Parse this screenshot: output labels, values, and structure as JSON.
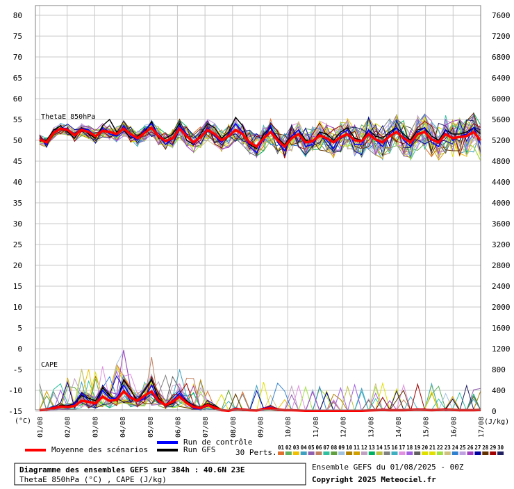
{
  "chart_data": {
    "type": "line",
    "title": "Diagramme des ensembles GEFS sur 384h : 40.6N 23E",
    "subtitle": "ThetaE 850hPa (°C) , CAPE (J/kg)",
    "run_info": "Ensemble GEFS du 01/08/2025 - 00Z",
    "copyright": "Copyright 2025 Meteociel.fr",
    "panel_labels": {
      "thetae": "ThetaE 850hPa",
      "cape": "CAPE"
    },
    "left_unit": "(°C)",
    "right_unit": "(J/kg)",
    "left_axis": {
      "min": -15,
      "max": 80,
      "ticks": [
        80,
        75,
        70,
        65,
        60,
        55,
        50,
        45,
        40,
        35,
        30,
        25,
        20,
        15,
        10,
        5,
        0,
        -5,
        -10,
        -15
      ]
    },
    "right_axis": {
      "min": 0,
      "max": 7600,
      "ticks": [
        7600,
        7200,
        6800,
        6400,
        6000,
        5600,
        5200,
        4800,
        4400,
        4000,
        3600,
        3200,
        2800,
        2400,
        2000,
        1600,
        1200,
        800,
        400,
        0
      ]
    },
    "x_labels": [
      "01/08",
      "02/08",
      "03/08",
      "04/08",
      "05/08",
      "06/08",
      "07/08",
      "08/08",
      "09/08",
      "10/08",
      "11/08",
      "12/08",
      "13/08",
      "14/08",
      "15/08",
      "16/08",
      "17/08"
    ],
    "series_thetae_mean": [
      50.2,
      49.5,
      51.8,
      52.8,
      52.5,
      51.2,
      52.5,
      52.0,
      51.0,
      52.3,
      52.0,
      51.5,
      52.8,
      51.5,
      50.5,
      51.8,
      53.0,
      51.0,
      49.8,
      50.5,
      52.8,
      51.0,
      49.5,
      50.8,
      52.5,
      51.5,
      50.0,
      51.0,
      52.5,
      51.5,
      49.5,
      48.5,
      50.5,
      52.0,
      50.0,
      48.5,
      50.5,
      51.5,
      49.5,
      49.8,
      51.2,
      50.5,
      49.5,
      50.8,
      51.5,
      50.0,
      49.8,
      51.5,
      50.2,
      49.5,
      51.0,
      52.0,
      50.5,
      49.5,
      51.5,
      52.0,
      50.2,
      49.5,
      51.5,
      50.5,
      50.8,
      51.0,
      52.0,
      50.0
    ],
    "series_thetae_control": [
      50.5,
      49.0,
      52.0,
      53.0,
      52.8,
      51.0,
      52.8,
      52.5,
      51.0,
      52.8,
      51.5,
      51.0,
      53.5,
      51.0,
      50.0,
      52.5,
      54.0,
      51.0,
      49.0,
      50.5,
      53.5,
      51.5,
      49.0,
      51.0,
      53.0,
      51.0,
      49.5,
      51.5,
      54.0,
      52.0,
      48.5,
      47.0,
      50.5,
      53.5,
      49.5,
      47.5,
      51.0,
      52.5,
      48.5,
      49.0,
      51.5,
      50.0,
      48.0,
      51.5,
      52.5,
      49.0,
      49.0,
      52.5,
      50.0,
      48.5,
      51.5,
      53.0,
      50.0,
      48.5,
      52.0,
      53.0,
      49.5,
      48.5,
      52.5,
      50.0,
      51.0,
      51.5,
      53.0,
      49.0
    ],
    "series_thetae_gfs": [
      49.8,
      50.0,
      52.5,
      53.5,
      52.0,
      50.5,
      53.0,
      51.5,
      50.5,
      53.5,
      55.0,
      52.0,
      52.5,
      50.5,
      51.0,
      52.0,
      54.5,
      50.5,
      50.5,
      51.5,
      54.0,
      50.0,
      49.0,
      51.5,
      54.0,
      53.0,
      50.5,
      52.0,
      55.5,
      53.5,
      49.0,
      48.0,
      51.5,
      53.0,
      50.5,
      49.0,
      51.0,
      52.5,
      50.0,
      49.5,
      52.0,
      51.5,
      50.0,
      52.0,
      53.0,
      50.5,
      50.0,
      52.5,
      51.0,
      50.5,
      52.0,
      53.0,
      51.5,
      50.0,
      52.5,
      53.0,
      51.0,
      50.0,
      52.5,
      51.5,
      51.5,
      52.0,
      53.0,
      51.5
    ],
    "series_cape_mean": [
      20,
      30,
      60,
      90,
      80,
      100,
      200,
      180,
      150,
      280,
      200,
      220,
      380,
      260,
      200,
      300,
      380,
      200,
      120,
      180,
      280,
      160,
      80,
      60,
      120,
      70,
      20,
      10,
      40,
      30,
      20,
      15,
      40,
      60,
      30,
      20,
      20,
      15,
      10,
      10,
      10,
      10,
      10,
      10,
      10,
      10,
      10,
      15,
      20,
      25,
      20,
      20,
      20,
      25,
      30,
      25,
      20,
      25,
      30,
      25,
      20,
      20,
      20,
      25
    ],
    "series_cape_control": [
      30,
      20,
      80,
      100,
      60,
      150,
      350,
      200,
      120,
      400,
      250,
      250,
      500,
      300,
      180,
      250,
      500,
      200,
      100,
      200,
      350,
      150,
      50,
      40,
      100,
      80,
      20,
      10,
      30,
      40,
      30,
      20,
      60,
      80,
      40,
      30,
      30,
      20,
      10,
      10,
      10,
      10,
      10,
      10,
      10,
      10,
      10,
      20,
      30,
      40,
      20,
      20,
      20,
      30,
      40,
      30,
      20,
      30,
      40,
      30,
      20,
      20,
      20,
      30
    ],
    "series_cape_gfs": [
      20,
      40,
      50,
      120,
      100,
      150,
      300,
      250,
      200,
      450,
      300,
      200,
      600,
      400,
      200,
      400,
      600,
      250,
      100,
      150,
      300,
      200,
      100,
      80,
      150,
      100,
      30,
      10,
      50,
      40,
      30,
      20,
      50,
      70,
      40,
      30,
      30,
      20,
      10,
      10,
      10,
      10,
      10,
      10,
      10,
      10,
      10,
      20,
      30,
      30,
      20,
      20,
      20,
      30,
      40,
      30,
      20,
      30,
      40,
      30,
      20,
      20,
      20,
      30
    ],
    "ensemble_colors": [
      "#e07030",
      "#60b060",
      "#f0c000",
      "#40a0c0",
      "#9060b0",
      "#c08060",
      "#30c0a0",
      "#60a040",
      "#a0c0e0",
      "#b08000",
      "#d0a000",
      "#c0a0c0",
      "#00b060",
      "#c0c040",
      "#808080",
      "#40b0c0",
      "#e090e0",
      "#a060e0",
      "#606060",
      "#e0e000",
      "#e0e000",
      "#a0e040",
      "#d0c080",
      "#3080d0",
      "#c0a0e0",
      "#a040c0",
      "#0000a0",
      "#603000",
      "#a00000",
      "#202060"
    ],
    "legend": {
      "mean": "Moyenne des scénarios",
      "control": "Run de contrôle",
      "gfs": "Run GFS",
      "perts": "30 Perts.",
      "pert_numbers": [
        "01",
        "02",
        "03",
        "04",
        "05",
        "06",
        "07",
        "08",
        "09",
        "10",
        "11",
        "12",
        "13",
        "14",
        "15",
        "16",
        "17",
        "18",
        "19",
        "20",
        "21",
        "22",
        "23",
        "24",
        "25",
        "26",
        "27",
        "28",
        "29",
        "30"
      ]
    },
    "colors": {
      "mean": "#ff0000",
      "control": "#0000ff",
      "gfs": "#000000",
      "grid": "#c8c8c8"
    }
  }
}
